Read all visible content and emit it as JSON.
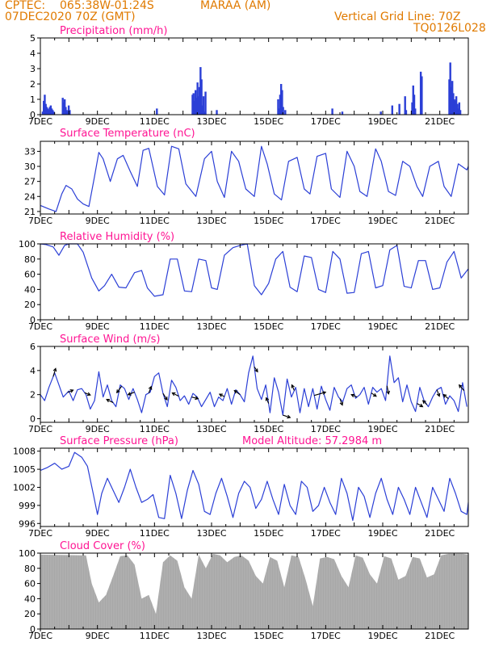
{
  "header": {
    "org": "CPTEC:",
    "coords": "065:38W-01:24S",
    "station": "MARAA (AM)",
    "run": "07DEC2020 70Z (GMT)",
    "vertical_grid": "Vertical Grid Line: 70Z",
    "code": "TQ0126L028"
  },
  "colors": {
    "header": "#e07a00",
    "title": "#ff1493",
    "line": "#2b3fd6",
    "cloud": "#a8a8a8",
    "arrow": "#000000"
  },
  "x_ticks": [
    "7DEC",
    "9DEC",
    "11DEC",
    "13DEC",
    "15DEC",
    "17DEC",
    "19DEC",
    "21DEC"
  ],
  "x_tick_day_offsets": [
    0,
    2,
    4,
    6,
    8,
    10,
    12,
    14
  ],
  "x_range_days": [
    0,
    15
  ],
  "chart_data": [
    {
      "type": "bar",
      "title": "Precipitation (mm/h)",
      "ylim": [
        0,
        5
      ],
      "yticks": [
        "0",
        "1",
        "2",
        "3",
        "4",
        "5"
      ],
      "bursts": [
        {
          "day": 0.05,
          "values": [
            0.2,
            0.9,
            1.3,
            0.7,
            0.5,
            0.4,
            0.3,
            0.5,
            0.6,
            0.4,
            0.3,
            0.2
          ]
        },
        {
          "day": 0.75,
          "values": [
            1.1,
            0.8,
            1.0,
            0.5,
            0.3,
            0.2,
            0.6,
            0.3
          ]
        },
        {
          "day": 4.05,
          "values": [
            0.4
          ]
        },
        {
          "day": 5.3,
          "values": [
            1.3,
            1.4,
            0.9,
            1.6,
            1.1,
            2.1,
            1.2,
            1.8,
            3.1,
            2.3,
            0.6,
            1.2,
            0.2,
            1.5
          ]
        },
        {
          "day": 6.15,
          "values": [
            0.3
          ]
        },
        {
          "day": 8.3,
          "values": [
            1.0,
            0.4,
            1.3,
            2.0,
            1.6,
            0.5
          ]
        },
        {
          "day": 8.55,
          "values": [
            0.3
          ]
        },
        {
          "day": 10.2,
          "values": [
            0.4
          ]
        },
        {
          "day": 10.55,
          "values": [
            0.2
          ]
        },
        {
          "day": 11.9,
          "values": [
            0.2
          ]
        },
        {
          "day": 12.3,
          "values": [
            0.6
          ]
        },
        {
          "day": 12.55,
          "values": [
            0.7
          ]
        },
        {
          "day": 12.75,
          "values": [
            1.2,
            0.3
          ]
        },
        {
          "day": 13.0,
          "values": [
            0.8,
            1.9,
            1.3,
            0.4
          ]
        },
        {
          "day": 13.3,
          "values": [
            2.8,
            2.5
          ]
        },
        {
          "day": 14.3,
          "values": [
            2.3,
            3.4,
            1.8,
            2.2,
            1.4,
            1.0,
            0.9,
            1.2,
            0.7,
            0.4,
            0.8,
            0.3
          ]
        }
      ]
    },
    {
      "type": "line",
      "title": "Surface Temperature (nC)",
      "ylim": [
        20.5,
        35
      ],
      "yticks": [
        "21",
        "24",
        "27",
        "30",
        "33"
      ],
      "x": [
        0,
        0.3,
        0.55,
        0.75,
        0.9,
        1.1,
        1.3,
        1.5,
        1.7,
        1.9,
        2.05,
        2.2,
        2.45,
        2.7,
        2.9,
        3.15,
        3.4,
        3.6,
        3.8,
        4.1,
        4.35,
        4.6,
        4.85,
        5.1,
        5.45,
        5.75,
        6.0,
        6.2,
        6.45,
        6.7,
        6.95,
        7.2,
        7.5,
        7.75,
        7.95,
        8.2,
        8.45,
        8.7,
        9.0,
        9.25,
        9.45,
        9.7,
        10.0,
        10.2,
        10.5,
        10.75,
        11.0,
        11.2,
        11.45,
        11.75,
        11.95,
        12.2,
        12.45,
        12.7,
        12.95,
        13.2,
        13.4,
        13.65,
        13.95,
        14.15,
        14.4,
        14.65,
        14.95,
        15.0
      ],
      "values": [
        22.2,
        21.5,
        21.0,
        24.5,
        26.2,
        25.5,
        23.5,
        22.5,
        22.0,
        28.0,
        32.8,
        31.5,
        27.0,
        31.5,
        32.2,
        29.0,
        26.0,
        33.2,
        33.6,
        26.0,
        24.3,
        34.0,
        33.5,
        26.5,
        24.0,
        31.5,
        33.0,
        27.0,
        23.8,
        33.0,
        31.0,
        25.5,
        24.0,
        34.0,
        30.5,
        24.5,
        23.3,
        31.0,
        31.8,
        25.5,
        24.5,
        32.0,
        32.6,
        25.5,
        23.8,
        33.0,
        30.0,
        25.0,
        24.0,
        33.5,
        31.0,
        25.0,
        24.2,
        31.0,
        30.0,
        26.0,
        24.0,
        30.0,
        31.0,
        26.0,
        24.0,
        30.5,
        29.3,
        30.0
      ]
    },
    {
      "type": "line",
      "title": "Relative Humidity (%)",
      "ylim": [
        0,
        100
      ],
      "yticks": [
        "0",
        "20",
        "40",
        "60",
        "80",
        "100"
      ],
      "x": [
        0,
        0.2,
        0.45,
        0.65,
        0.85,
        1.0,
        1.15,
        1.3,
        1.5,
        1.8,
        2.05,
        2.25,
        2.5,
        2.75,
        3.0,
        3.3,
        3.55,
        3.75,
        4.0,
        4.3,
        4.55,
        4.8,
        5.05,
        5.3,
        5.55,
        5.8,
        6.0,
        6.2,
        6.45,
        6.75,
        7.0,
        7.25,
        7.5,
        7.75,
        8.0,
        8.25,
        8.5,
        8.75,
        9.0,
        9.25,
        9.5,
        9.75,
        10.0,
        10.25,
        10.5,
        10.75,
        11.0,
        11.25,
        11.5,
        11.75,
        12.0,
        12.25,
        12.5,
        12.75,
        13.0,
        13.25,
        13.5,
        13.75,
        14.0,
        14.25,
        14.5,
        14.75,
        15.0
      ],
      "values": [
        100,
        99,
        96,
        85,
        98,
        100,
        100,
        100,
        89,
        55,
        38,
        45,
        60,
        43,
        42,
        62,
        65,
        42,
        31,
        33,
        80,
        80,
        38,
        37,
        80,
        78,
        42,
        40,
        85,
        95,
        98,
        100,
        45,
        33,
        48,
        80,
        90,
        43,
        37,
        84,
        82,
        40,
        36,
        90,
        80,
        35,
        36,
        87,
        90,
        42,
        45,
        92,
        98,
        44,
        42,
        78,
        78,
        40,
        42,
        76,
        90,
        55,
        67
      ]
    },
    {
      "type": "line",
      "title": "Surface Wind (m/s)",
      "ylim": [
        -0.3,
        6
      ],
      "yticks": [
        "0",
        "2",
        "4",
        "6"
      ],
      "x": [
        0,
        0.15,
        0.3,
        0.5,
        0.65,
        0.8,
        1.0,
        1.15,
        1.3,
        1.45,
        1.6,
        1.75,
        1.9,
        2.05,
        2.2,
        2.35,
        2.5,
        2.65,
        2.8,
        2.95,
        3.1,
        3.25,
        3.4,
        3.55,
        3.7,
        3.85,
        4.0,
        4.15,
        4.3,
        4.45,
        4.6,
        4.75,
        4.9,
        5.05,
        5.2,
        5.35,
        5.5,
        5.65,
        5.8,
        5.95,
        6.1,
        6.25,
        6.4,
        6.55,
        6.7,
        6.85,
        7.0,
        7.15,
        7.3,
        7.45,
        7.6,
        7.75,
        7.9,
        8.05,
        8.2,
        8.35,
        8.5,
        8.65,
        8.8,
        8.95,
        9.1,
        9.25,
        9.4,
        9.55,
        9.7,
        9.85,
        10.0,
        10.15,
        10.3,
        10.45,
        10.6,
        10.75,
        10.9,
        11.05,
        11.2,
        11.35,
        11.5,
        11.65,
        11.8,
        11.95,
        12.1,
        12.25,
        12.4,
        12.55,
        12.7,
        12.85,
        13.0,
        13.15,
        13.3,
        13.45,
        13.6,
        13.75,
        13.9,
        14.05,
        14.2,
        14.35,
        14.5,
        14.65,
        14.8,
        14.95
      ],
      "values": [
        2.0,
        1.5,
        2.6,
        3.8,
        2.8,
        1.8,
        2.3,
        1.5,
        2.4,
        2.5,
        2.0,
        0.8,
        1.5,
        3.9,
        1.8,
        2.8,
        1.5,
        1.0,
        2.8,
        2.5,
        1.6,
        2.5,
        1.6,
        0.5,
        2.0,
        2.2,
        3.5,
        3.8,
        2.1,
        1.0,
        3.2,
        2.6,
        1.5,
        1.9,
        1.2,
        2.1,
        1.8,
        1.0,
        1.6,
        2.2,
        1.0,
        1.8,
        1.5,
        2.5,
        1.2,
        2.4,
        2.0,
        1.4,
        3.8,
        5.2,
        2.5,
        1.6,
        2.8,
        0.5,
        3.4,
        2.2,
        0.3,
        3.3,
        1.8,
        2.6,
        0.5,
        2.5,
        1.0,
        2.5,
        0.8,
        2.7,
        1.6,
        0.7,
        2.6,
        1.8,
        1.4,
        2.5,
        2.8,
        1.7,
        2.0,
        2.6,
        1.2,
        2.6,
        2.2,
        2.5,
        1.5,
        5.2,
        3.0,
        3.4,
        1.4,
        2.8,
        1.4,
        0.6,
        2.6,
        1.5,
        1.0,
        1.8,
        2.4,
        2.6,
        1.2,
        1.9,
        1.5,
        0.6,
        3.0,
        1.0
      ]
    },
    {
      "type": "line",
      "title": "Surface Pressure (hPa)",
      "annotation": "Model Altitude: 57.2984 m",
      "ylim": [
        995.5,
        1008.5
      ],
      "yticks": [
        "996",
        "999",
        "1002",
        "1005",
        "1008"
      ],
      "x": [
        0,
        0.25,
        0.5,
        0.75,
        1.0,
        1.2,
        1.45,
        1.65,
        1.85,
        2.0,
        2.15,
        2.35,
        2.55,
        2.75,
        2.95,
        3.15,
        3.35,
        3.55,
        3.75,
        3.95,
        4.15,
        4.35,
        4.55,
        4.75,
        4.95,
        5.15,
        5.35,
        5.55,
        5.75,
        5.95,
        6.15,
        6.35,
        6.55,
        6.75,
        6.95,
        7.15,
        7.35,
        7.55,
        7.75,
        7.95,
        8.15,
        8.35,
        8.55,
        8.75,
        8.95,
        9.15,
        9.35,
        9.55,
        9.75,
        9.95,
        10.15,
        10.35,
        10.55,
        10.75,
        10.95,
        11.15,
        11.35,
        11.55,
        11.75,
        11.95,
        12.15,
        12.35,
        12.55,
        12.75,
        12.95,
        13.15,
        13.35,
        13.55,
        13.75,
        13.95,
        14.15,
        14.35,
        14.55,
        14.75,
        14.95,
        15.0
      ],
      "values": [
        1004.8,
        1005.3,
        1006.0,
        1005.0,
        1005.5,
        1007.8,
        1007.0,
        1005.5,
        1001.0,
        997.5,
        1001.0,
        1003.5,
        1001.5,
        999.5,
        1002.0,
        1005.0,
        1002.0,
        999.5,
        1000.0,
        1000.8,
        997.0,
        996.8,
        1004.0,
        1001.0,
        996.8,
        1001.5,
        1004.8,
        1002.5,
        998.0,
        997.5,
        1001.0,
        1003.5,
        1000.5,
        997.0,
        1001.0,
        1003.0,
        1002.0,
        998.5,
        1000.0,
        1003.0,
        1000.0,
        997.5,
        1002.5,
        999.0,
        997.5,
        1003.0,
        1002.0,
        998.0,
        999.0,
        1002.0,
        999.5,
        997.5,
        1003.5,
        1001.0,
        996.5,
        1002.0,
        1000.5,
        997.0,
        1001.0,
        1003.5,
        1000.0,
        997.5,
        1002.0,
        1000.0,
        997.5,
        1002.0,
        999.5,
        997.0,
        1002.0,
        1000.0,
        998.0,
        1003.5,
        1001.0,
        998.0,
        997.5,
        999.5
      ]
    },
    {
      "type": "area",
      "title": "Cloud Cover (%)",
      "ylim": [
        0,
        100
      ],
      "yticks": [
        "0",
        "20",
        "40",
        "60",
        "80",
        "100"
      ],
      "x": [
        0,
        1.6,
        1.8,
        2.05,
        2.3,
        2.55,
        2.8,
        3.05,
        3.3,
        3.55,
        3.8,
        4.05,
        4.3,
        4.55,
        4.8,
        5.05,
        5.3,
        5.55,
        5.8,
        6.05,
        6.3,
        6.55,
        6.8,
        7.05,
        7.3,
        7.55,
        7.8,
        8.05,
        8.3,
        8.55,
        8.8,
        9.05,
        9.3,
        9.55,
        9.8,
        10.05,
        10.3,
        10.55,
        10.8,
        11.05,
        11.3,
        11.55,
        11.8,
        12.05,
        12.3,
        12.55,
        12.8,
        13.05,
        13.3,
        13.55,
        13.8,
        14.05,
        14.3,
        14.55,
        14.8,
        15.0
      ],
      "values": [
        98,
        97,
        60,
        35,
        45,
        70,
        96,
        97,
        85,
        40,
        45,
        20,
        88,
        97,
        90,
        55,
        40,
        98,
        80,
        99,
        97,
        88,
        95,
        97,
        90,
        70,
        60,
        95,
        90,
        55,
        97,
        95,
        65,
        30,
        93,
        95,
        92,
        70,
        55,
        97,
        94,
        72,
        60,
        96,
        93,
        65,
        70,
        95,
        93,
        68,
        72,
        97,
        99,
        99,
        99,
        98
      ]
    }
  ],
  "wind_arrows": [
    {
      "day": 0.45,
      "dx": 3,
      "dy": -10
    },
    {
      "day": 0.95,
      "dx": 7,
      "dy": -3
    },
    {
      "day": 1.55,
      "dx": 7,
      "dy": 3
    },
    {
      "day": 2.55,
      "dx": -8,
      "dy": -4
    },
    {
      "day": 2.85,
      "dx": -6,
      "dy": 8
    },
    {
      "day": 3.3,
      "dx": -8,
      "dy": 3
    },
    {
      "day": 3.8,
      "dx": 3,
      "dy": -8
    },
    {
      "day": 4.3,
      "dx": 5,
      "dy": 8
    },
    {
      "day": 4.85,
      "dx": -8,
      "dy": -4
    },
    {
      "day": 5.3,
      "dx": 8,
      "dy": 2
    },
    {
      "day": 6.45,
      "dx": -6,
      "dy": -3
    },
    {
      "day": 7.0,
      "dx": -7,
      "dy": -5
    },
    {
      "day": 7.5,
      "dx": 4,
      "dy": 6
    },
    {
      "day": 8.0,
      "dx": -3,
      "dy": -7
    },
    {
      "day": 8.5,
      "dx": 9,
      "dy": 3
    },
    {
      "day": 8.9,
      "dx": -3,
      "dy": -7
    },
    {
      "day": 9.6,
      "dx": 14,
      "dy": -4
    },
    {
      "day": 10.5,
      "dx": 3,
      "dy": 8
    },
    {
      "day": 11.1,
      "dx": -7,
      "dy": -3
    },
    {
      "day": 11.6,
      "dx": 6,
      "dy": 4
    },
    {
      "day": 12.15,
      "dx": 2,
      "dy": 10
    },
    {
      "day": 13.2,
      "dx": 7,
      "dy": 4
    },
    {
      "day": 13.55,
      "dx": -5,
      "dy": -5
    },
    {
      "day": 13.9,
      "dx": 3,
      "dy": 8
    },
    {
      "day": 14.3,
      "dx": -6,
      "dy": -5
    },
    {
      "day": 14.85,
      "dx": -6,
      "dy": -7
    }
  ]
}
